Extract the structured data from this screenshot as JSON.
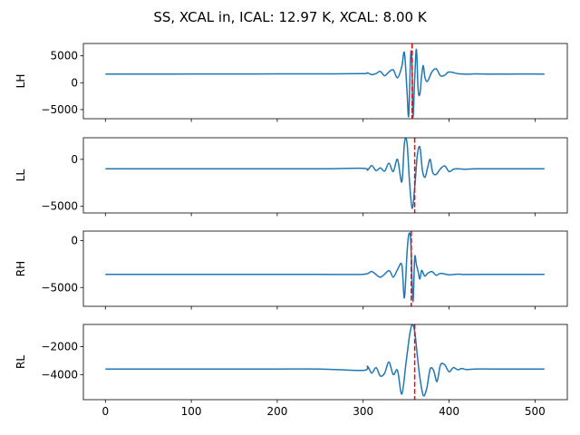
{
  "figure": {
    "title": "SS, XCAL in, ICAL: 12.97 K, XCAL: 8.00 K"
  },
  "colors": {
    "line": "#1f77b4",
    "marker": "#ff0000",
    "axis": "#000000",
    "background": "#ffffff"
  },
  "chart_data": [
    {
      "type": "line",
      "ylabel": "LH",
      "xlim": [
        -25.6,
        537.6
      ],
      "ylim": [
        -6700,
        7300
      ],
      "yticks": [
        -5000,
        0,
        5000
      ],
      "xticks": [
        0,
        100,
        200,
        300,
        400,
        500
      ],
      "show_xticklabels": false,
      "marker_x": 357,
      "baseline": 1600,
      "peak_x": 357,
      "series": [
        {
          "x": [
            0,
            50,
            100,
            150,
            200,
            250,
            300,
            305,
            310,
            315,
            320,
            325,
            330,
            335,
            340,
            345,
            348,
            351,
            353,
            355,
            356,
            357,
            358,
            360,
            362,
            364,
            366,
            368,
            370,
            372,
            375,
            380,
            385,
            390,
            395,
            400,
            410,
            420,
            430,
            450,
            480,
            511
          ],
          "y": [
            1600,
            1600,
            1620,
            1630,
            1640,
            1650,
            1700,
            1850,
            1500,
            1700,
            2100,
            1300,
            2000,
            2400,
            900,
            3000,
            5600,
            -1400,
            -6200,
            4000,
            5900,
            2800,
            -6400,
            800,
            6200,
            -1300,
            -2100,
            1200,
            3200,
            900,
            300,
            2000,
            2600,
            1300,
            1400,
            2000,
            1700,
            1580,
            1640,
            1600,
            1620,
            1610
          ]
        }
      ]
    },
    {
      "type": "line",
      "ylabel": "LL",
      "xlim": [
        -25.6,
        537.6
      ],
      "ylim": [
        -5700,
        2300
      ],
      "yticks": [
        -5000,
        0
      ],
      "xticks": [
        0,
        100,
        200,
        300,
        400,
        500
      ],
      "show_xticklabels": false,
      "marker_x": 360,
      "baseline": -1000,
      "peak_x": 360,
      "series": [
        {
          "x": [
            0,
            50,
            100,
            150,
            200,
            250,
            300,
            305,
            310,
            315,
            320,
            325,
            330,
            335,
            340,
            345,
            348,
            351,
            354,
            357,
            360,
            363,
            366,
            369,
            372,
            375,
            378,
            381,
            385,
            390,
            395,
            400,
            405,
            410,
            420,
            430,
            450,
            480,
            511
          ],
          "y": [
            -1000,
            -1000,
            -1000,
            -1000,
            -1000,
            -1000,
            -950,
            -1150,
            -650,
            -1200,
            -900,
            -1250,
            -400,
            -1300,
            0,
            -2400,
            1700,
            1800,
            -2400,
            -5200,
            -3000,
            400,
            1300,
            -1200,
            -1900,
            -900,
            0,
            -1400,
            -1600,
            -1000,
            -700,
            -1300,
            -1050,
            -1000,
            -1050,
            -1000,
            -1000,
            -1000,
            -1000
          ]
        }
      ]
    },
    {
      "type": "line",
      "ylabel": "RH",
      "xlim": [
        -25.6,
        537.6
      ],
      "ylim": [
        -7000,
        1000
      ],
      "yticks": [
        -5000,
        0
      ],
      "xticks": [
        0,
        100,
        200,
        300,
        400,
        500
      ],
      "show_xticklabels": false,
      "marker_x": 356,
      "baseline": -3600,
      "peak_x": 356,
      "series": [
        {
          "x": [
            0,
            50,
            100,
            150,
            200,
            250,
            300,
            310,
            320,
            330,
            335,
            340,
            345,
            348,
            351,
            353,
            355,
            356,
            358,
            360,
            362,
            364,
            366,
            368,
            370,
            372,
            375,
            380,
            385,
            390,
            400,
            410,
            420,
            450,
            480,
            511
          ],
          "y": [
            -3600,
            -3600,
            -3600,
            -3600,
            -3600,
            -3600,
            -3600,
            -3300,
            -3900,
            -3200,
            -3900,
            -3100,
            -2600,
            -6100,
            -1400,
            600,
            500,
            -1500,
            -6500,
            -1800,
            -2600,
            -3300,
            -4100,
            -3200,
            -3500,
            -3800,
            -3500,
            -3300,
            -3700,
            -3500,
            -3650,
            -3580,
            -3620,
            -3600,
            -3600,
            -3600
          ]
        }
      ]
    },
    {
      "type": "line",
      "ylabel": "RL",
      "xlim": [
        -25.6,
        537.6
      ],
      "ylim": [
        -5800,
        -400
      ],
      "yticks": [
        -4000,
        -2000
      ],
      "xticks": [
        0,
        100,
        200,
        300,
        400,
        500
      ],
      "show_xticklabels": true,
      "marker_x": 360,
      "baseline": -3600,
      "peak_x": 360,
      "series": [
        {
          "x": [
            0,
            50,
            100,
            150,
            200,
            250,
            300,
            305,
            310,
            315,
            320,
            325,
            330,
            335,
            340,
            345,
            350,
            354,
            357,
            360,
            363,
            366,
            370,
            374,
            378,
            382,
            386,
            390,
            395,
            400,
            405,
            410,
            415,
            420,
            430,
            450,
            480,
            511
          ],
          "y": [
            -3600,
            -3600,
            -3600,
            -3600,
            -3600,
            -3600,
            -3700,
            -3400,
            -3900,
            -3500,
            -4100,
            -3900,
            -3100,
            -4000,
            -3700,
            -5400,
            -3100,
            -1200,
            -400,
            -900,
            -2600,
            -4200,
            -5500,
            -5000,
            -3600,
            -3700,
            -4500,
            -3300,
            -3300,
            -3800,
            -3500,
            -3650,
            -3560,
            -3640,
            -3600,
            -3600,
            -3600,
            -3600
          ]
        }
      ]
    }
  ]
}
